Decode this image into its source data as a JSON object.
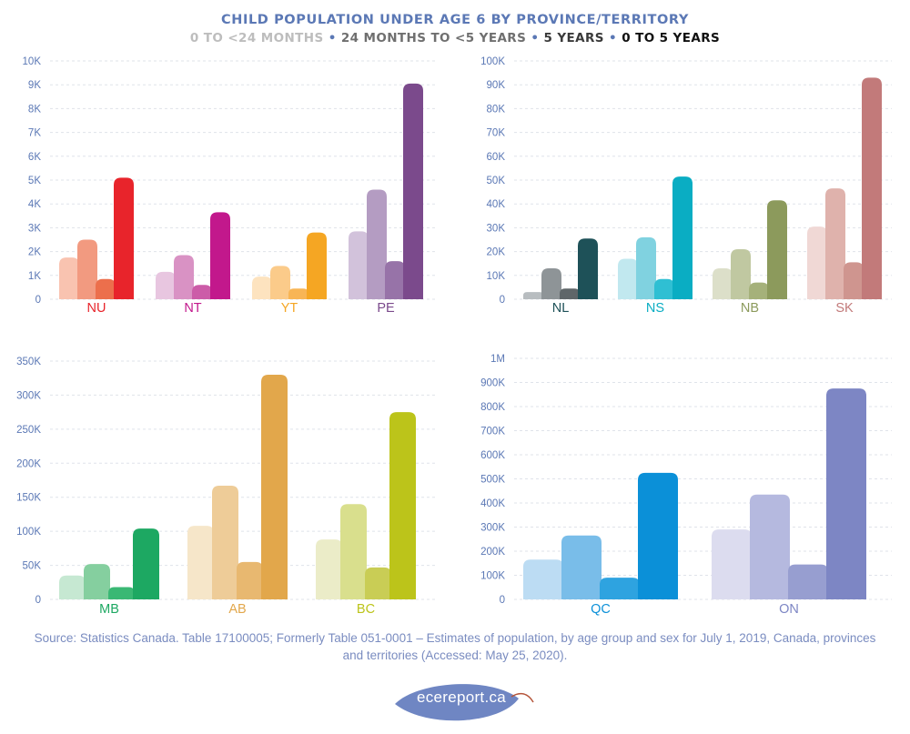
{
  "title": "CHILD POPULATION UNDER AGE 6 BY PROVINCE/TERRITORY",
  "legend": {
    "items": [
      {
        "label": "0 TO <24 MONTHS",
        "color": "#bdbdbd"
      },
      {
        "label": "24 MONTHS TO <5 YEARS",
        "color": "#6f6f6f"
      },
      {
        "label": "5 YEARS",
        "color": "#3a3a3a"
      },
      {
        "label": "0 TO 5 YEARS",
        "color": "#111111"
      }
    ],
    "separator": " • "
  },
  "chart_data": [
    {
      "type": "bar",
      "yticks": [
        "0",
        "1K",
        "2K",
        "3K",
        "4K",
        "5K",
        "6K",
        "7K",
        "8K",
        "9K",
        "10K"
      ],
      "ylim": [
        0,
        10000
      ],
      "categories": [
        "NU",
        "NT",
        "YT",
        "PE"
      ],
      "category_colors": [
        "#e8242b",
        "#c2188c",
        "#f5a623",
        "#7b4a8c"
      ],
      "series_colors": [
        [
          "#f9c3b0",
          "#f29a80",
          "#ec6f4c",
          "#e8242b"
        ],
        [
          "#e8c6e0",
          "#d992c4",
          "#cc5ca8",
          "#c2188c"
        ],
        [
          "#fde3bf",
          "#fbcb8a",
          "#f8b555",
          "#f5a623"
        ],
        [
          "#d2c2db",
          "#b49cc2",
          "#9773a8",
          "#7b4a8c"
        ]
      ],
      "values": [
        [
          1750,
          2500,
          850,
          5100
        ],
        [
          1150,
          1850,
          600,
          3650
        ],
        [
          950,
          1400,
          450,
          2800
        ],
        [
          2850,
          4600,
          1600,
          9050
        ]
      ]
    },
    {
      "type": "bar",
      "yticks": [
        "0",
        "10K",
        "20K",
        "30K",
        "40K",
        "50K",
        "60K",
        "70K",
        "80K",
        "90K",
        "100K"
      ],
      "ylim": [
        0,
        100000
      ],
      "categories": [
        "NL",
        "NS",
        "NB",
        "SK"
      ],
      "category_colors": [
        "#1e5158",
        "#0aadc3",
        "#8c9a5c",
        "#c27a7a"
      ],
      "series_colors": [
        [
          "#b8bdc0",
          "#8e9497",
          "#5f6669",
          "#1e5158"
        ],
        [
          "#c1e8ef",
          "#80d2e0",
          "#2fbfd3",
          "#0aadc3"
        ],
        [
          "#dcdfc9",
          "#c0c8a1",
          "#a5b17a",
          "#8c9a5c"
        ],
        [
          "#f0d8d5",
          "#dfb2ac",
          "#cf958f",
          "#c27a7a"
        ]
      ],
      "values": [
        [
          3000,
          13000,
          4500,
          25500
        ],
        [
          17000,
          26000,
          8500,
          51500
        ],
        [
          13000,
          21000,
          7000,
          41500
        ],
        [
          30500,
          46500,
          15500,
          93000
        ]
      ]
    },
    {
      "type": "bar",
      "yticks": [
        "0",
        "50K",
        "100K",
        "150K",
        "200K",
        "250K",
        "300K",
        "350K"
      ],
      "ylim": [
        0,
        350000
      ],
      "categories": [
        "MB",
        "AB",
        "BC"
      ],
      "category_colors": [
        "#1da862",
        "#e2a74b",
        "#bcc41a"
      ],
      "series_colors": [
        [
          "#c6e8d2",
          "#85cf9f",
          "#3ab874",
          "#1da862"
        ],
        [
          "#f6e6c9",
          "#eecc98",
          "#e8b870",
          "#e2a74b"
        ],
        [
          "#ebecc8",
          "#d9df8d",
          "#c9cd55",
          "#bcc41a"
        ]
      ],
      "values": [
        [
          35000,
          52000,
          18000,
          104000
        ],
        [
          108000,
          167000,
          55000,
          330000
        ],
        [
          88000,
          140000,
          47000,
          275000
        ]
      ]
    },
    {
      "type": "bar",
      "yticks": [
        "0",
        "100K",
        "200K",
        "300K",
        "400K",
        "500K",
        "600K",
        "700K",
        "800K",
        "900K",
        "1M"
      ],
      "ylim": [
        0,
        1000000
      ],
      "categories": [
        "QC",
        "ON"
      ],
      "category_colors": [
        "#0b90d8",
        "#7d86c4"
      ],
      "series_colors": [
        [
          "#bcdcf3",
          "#79bde9",
          "#2ea3e0",
          "#0b90d8"
        ],
        [
          "#dcdcef",
          "#b5b9df",
          "#979ed0",
          "#7d86c4"
        ]
      ],
      "values": [
        [
          165000,
          265000,
          90000,
          525000
        ],
        [
          290000,
          435000,
          145000,
          875000
        ]
      ]
    }
  ],
  "source": {
    "line1": "Source: Statistics Canada. Table 17100005; Formerly Table 051-0001 – Estimates of population, by age group and sex for July 1, 2019, Canada, provinces",
    "line2": "and territories (Accessed: May 25, 2020)."
  },
  "logo": {
    "text": "ecereport.ca",
    "leaf_color": "#6f86c3"
  }
}
